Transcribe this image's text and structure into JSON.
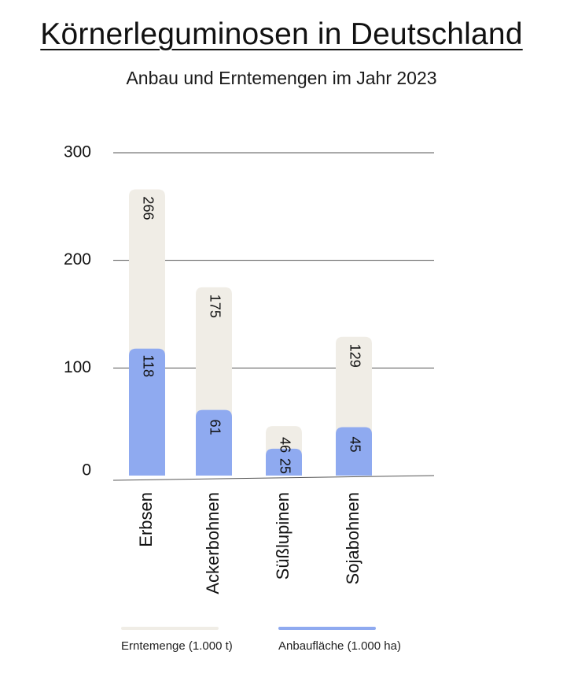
{
  "title": "Körnerleguminosen in Deutschland",
  "subtitle": "Anbau und Erntemengen im Jahr 2023",
  "colors": {
    "harvest": "#f0ede6",
    "area": "#8faaf0",
    "grid": "#555555"
  },
  "legend": {
    "harvest_label": "Erntemenge (1.000 t)",
    "area_label": "Anbaufläche (1.000 ha)"
  },
  "chart_data": {
    "type": "bar",
    "title": "Körnerleguminosen in Deutschland",
    "subtitle": "Anbau und Erntemengen im Jahr 2023",
    "categories": [
      "Erbsen",
      "Ackerbohnen",
      "Süßlupinen",
      "Sojabohnen"
    ],
    "series": [
      {
        "name": "Erntemenge (1.000 t)",
        "values": [
          266,
          175,
          46,
          129
        ]
      },
      {
        "name": "Anbaufläche (1.000 ha)",
        "values": [
          118,
          61,
          25,
          45
        ]
      }
    ],
    "yticks": [
      0,
      100,
      200,
      300
    ],
    "ylim": [
      0,
      300
    ],
    "grid": true,
    "legend_position": "bottom",
    "overlapping": true
  }
}
